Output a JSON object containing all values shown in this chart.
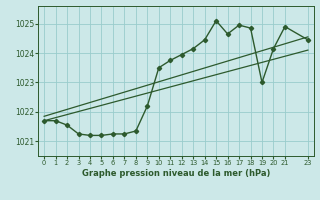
{
  "title": "Graphe pression niveau de la mer (hPa)",
  "bg_color": "#cce8e8",
  "grid_color": "#99cccc",
  "line_color": "#2d5a2d",
  "xlim": [
    -0.5,
    23.5
  ],
  "ylim": [
    1020.5,
    1025.6
  ],
  "yticks": [
    1021,
    1022,
    1023,
    1024,
    1025
  ],
  "xticks": [
    0,
    1,
    2,
    3,
    4,
    5,
    6,
    7,
    8,
    9,
    10,
    11,
    12,
    13,
    14,
    15,
    16,
    17,
    18,
    19,
    20,
    21,
    23
  ],
  "series1_x": [
    0,
    1,
    2,
    3,
    4,
    5,
    6,
    7,
    8,
    9,
    10,
    11,
    12,
    13,
    14,
    15,
    16,
    17,
    18,
    19,
    20,
    21,
    23
  ],
  "series1_y": [
    1021.7,
    1021.7,
    1021.55,
    1021.25,
    1021.2,
    1021.2,
    1021.25,
    1021.25,
    1021.35,
    1022.2,
    1023.5,
    1023.75,
    1023.95,
    1024.15,
    1024.45,
    1025.1,
    1024.65,
    1024.95,
    1024.85,
    1023.0,
    1024.15,
    1024.9,
    1024.45
  ],
  "trend1_x": [
    0,
    23
  ],
  "trend1_y": [
    1021.7,
    1024.1
  ],
  "trend2_x": [
    0,
    23
  ],
  "trend2_y": [
    1021.85,
    1024.55
  ]
}
